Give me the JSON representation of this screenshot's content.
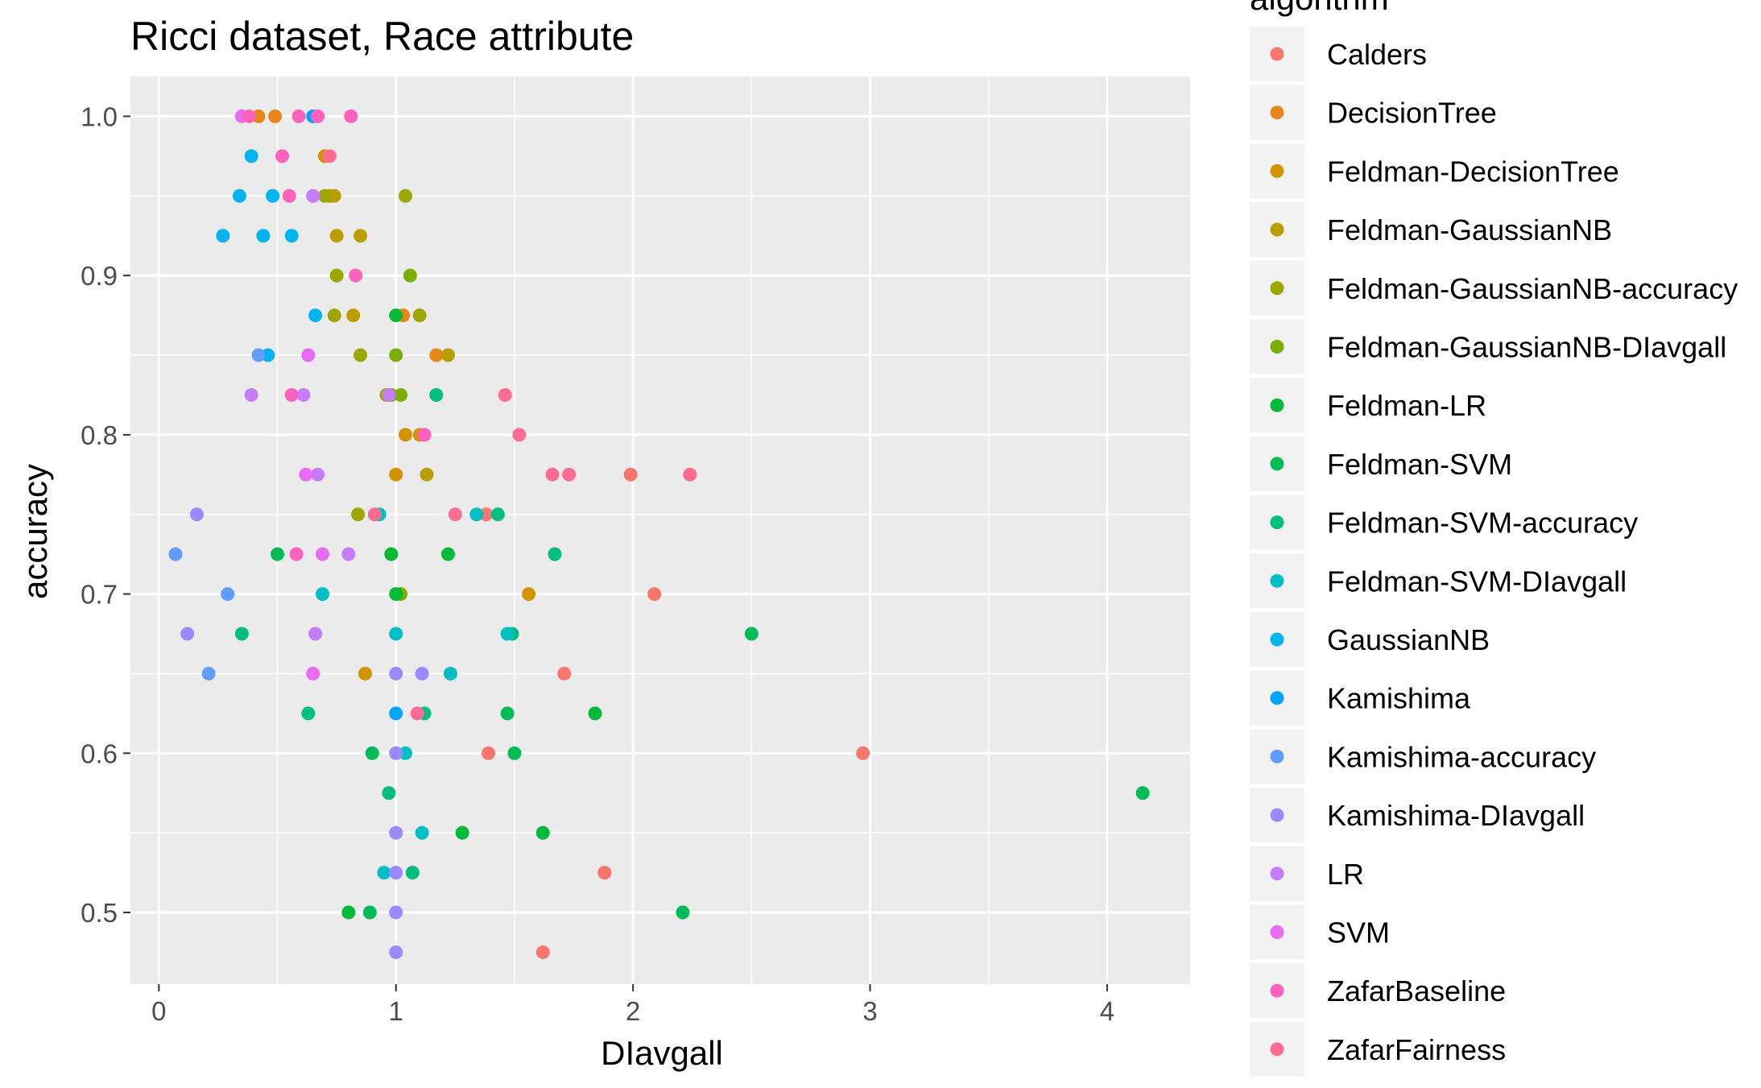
{
  "chart_data": {
    "type": "scatter",
    "title": "Ricci dataset, Race attribute",
    "xlabel": "DIavgall",
    "ylabel": "accuracy",
    "xlim": [
      -0.12,
      4.35
    ],
    "ylim": [
      0.455,
      1.025
    ],
    "x_ticks": [
      0,
      1,
      2,
      3,
      4
    ],
    "y_ticks": [
      0.5,
      0.6,
      0.7,
      0.8,
      0.9,
      1.0
    ],
    "x_tick_labels": [
      "0",
      "1",
      "2",
      "3",
      "4"
    ],
    "y_tick_labels": [
      "0.5",
      "0.6",
      "0.7",
      "0.8",
      "0.9",
      "1.0"
    ],
    "grid": true,
    "legend_title": "algorithm",
    "legend_position": "right",
    "series": [
      {
        "name": "Calders",
        "color": "#F8766D",
        "points": [
          [
            1.99,
            0.775
          ],
          [
            2.09,
            0.7
          ],
          [
            1.71,
            0.65
          ],
          [
            1.39,
            0.6
          ],
          [
            2.97,
            0.6
          ],
          [
            1.88,
            0.525
          ],
          [
            1.62,
            0.475
          ],
          [
            1.38,
            0.75
          ]
        ]
      },
      {
        "name": "DecisionTree",
        "color": "#E7861B",
        "points": [
          [
            0.49,
            1.0
          ],
          [
            0.42,
            1.0
          ],
          [
            1.03,
            0.875
          ],
          [
            1.17,
            0.85
          ]
        ]
      },
      {
        "name": "Feldman-DecisionTree",
        "color": "#D39200",
        "points": [
          [
            1.04,
            0.8
          ],
          [
            1.1,
            0.8
          ],
          [
            1.0,
            0.775
          ],
          [
            1.56,
            0.7
          ],
          [
            0.87,
            0.65
          ],
          [
            0.7,
            0.975
          ]
        ]
      },
      {
        "name": "Feldman-GaussianNB",
        "color": "#BB9D00",
        "points": [
          [
            0.72,
            0.95
          ],
          [
            0.75,
            0.925
          ],
          [
            0.85,
            0.925
          ],
          [
            0.82,
            0.875
          ],
          [
            1.22,
            0.85
          ],
          [
            1.13,
            0.775
          ],
          [
            0.74,
            0.95
          ]
        ]
      },
      {
        "name": "Feldman-GaussianNB-accuracy",
        "color": "#9DA700",
        "points": [
          [
            1.04,
            0.95
          ],
          [
            0.74,
            0.875
          ],
          [
            0.84,
            0.75
          ],
          [
            1.1,
            0.875
          ],
          [
            0.85,
            0.85
          ],
          [
            0.96,
            0.825
          ],
          [
            0.7,
            0.95
          ],
          [
            0.75,
            0.9
          ]
        ]
      },
      {
        "name": "Feldman-GaussianNB-DIavgall",
        "color": "#7CAE00",
        "points": [
          [
            1.06,
            0.9
          ],
          [
            1.0,
            0.85
          ],
          [
            1.02,
            0.825
          ],
          [
            1.02,
            0.7
          ],
          [
            0.98,
            0.825
          ]
        ]
      },
      {
        "name": "Feldman-LR",
        "color": "#00BA38",
        "points": [
          [
            1.0,
            0.875
          ],
          [
            0.98,
            0.725
          ],
          [
            1.22,
            0.725
          ],
          [
            1.0,
            0.7
          ],
          [
            1.84,
            0.625
          ],
          [
            1.28,
            0.55
          ],
          [
            1.62,
            0.55
          ],
          [
            0.8,
            0.5
          ]
        ]
      },
      {
        "name": "Feldman-SVM",
        "color": "#00BC56",
        "points": [
          [
            0.5,
            0.725
          ],
          [
            2.5,
            0.675
          ],
          [
            1.47,
            0.625
          ],
          [
            1.5,
            0.6
          ],
          [
            0.9,
            0.6
          ],
          [
            4.15,
            0.575
          ],
          [
            2.21,
            0.5
          ],
          [
            0.89,
            0.5
          ]
        ]
      },
      {
        "name": "Feldman-SVM-accuracy",
        "color": "#00BF7D",
        "points": [
          [
            1.17,
            0.825
          ],
          [
            1.43,
            0.75
          ],
          [
            1.67,
            0.725
          ],
          [
            0.35,
            0.675
          ],
          [
            1.49,
            0.675
          ],
          [
            0.63,
            0.625
          ],
          [
            1.12,
            0.625
          ],
          [
            0.97,
            0.575
          ],
          [
            1.07,
            0.525
          ]
        ]
      },
      {
        "name": "Feldman-SVM-DIavgall",
        "color": "#00BFC4",
        "points": [
          [
            0.93,
            0.75
          ],
          [
            1.34,
            0.75
          ],
          [
            0.69,
            0.7
          ],
          [
            1.0,
            0.675
          ],
          [
            1.23,
            0.65
          ],
          [
            1.04,
            0.6
          ],
          [
            1.11,
            0.55
          ],
          [
            0.95,
            0.525
          ],
          [
            1.47,
            0.675
          ]
        ]
      },
      {
        "name": "GaussianNB",
        "color": "#00B4EF",
        "points": [
          [
            0.39,
            0.975
          ],
          [
            0.34,
            0.95
          ],
          [
            0.48,
            0.95
          ],
          [
            0.27,
            0.925
          ],
          [
            0.44,
            0.925
          ],
          [
            0.56,
            0.925
          ],
          [
            0.66,
            0.875
          ],
          [
            0.46,
            0.85
          ]
        ]
      },
      {
        "name": "Kamishima",
        "color": "#00A5FF",
        "points": [
          [
            0.65,
            1.0
          ],
          [
            1.0,
            0.625
          ]
        ]
      },
      {
        "name": "Kamishima-accuracy",
        "color": "#619CFF",
        "points": [
          [
            0.42,
            0.85
          ],
          [
            0.07,
            0.725
          ],
          [
            0.29,
            0.7
          ],
          [
            0.21,
            0.65
          ]
        ]
      },
      {
        "name": "Kamishima-DIavgall",
        "color": "#9B8AFF",
        "points": [
          [
            0.16,
            0.75
          ],
          [
            0.12,
            0.675
          ],
          [
            1.0,
            0.65
          ],
          [
            1.11,
            0.65
          ],
          [
            1.0,
            0.6
          ],
          [
            1.0,
            0.55
          ],
          [
            1.0,
            0.525
          ],
          [
            1.0,
            0.5
          ],
          [
            1.0,
            0.475
          ]
        ]
      },
      {
        "name": "LR",
        "color": "#C77CFF",
        "points": [
          [
            0.65,
            0.95
          ],
          [
            0.39,
            0.825
          ],
          [
            0.61,
            0.825
          ],
          [
            0.97,
            0.825
          ],
          [
            0.67,
            0.775
          ],
          [
            0.8,
            0.725
          ],
          [
            0.66,
            0.675
          ]
        ]
      },
      {
        "name": "SVM",
        "color": "#E76BF3",
        "points": [
          [
            0.35,
            1.0
          ],
          [
            0.63,
            0.85
          ],
          [
            0.62,
            0.775
          ],
          [
            0.69,
            0.725
          ],
          [
            0.65,
            0.65
          ]
        ]
      },
      {
        "name": "ZafarBaseline",
        "color": "#FF62BC",
        "points": [
          [
            0.38,
            1.0
          ],
          [
            0.59,
            1.0
          ],
          [
            0.67,
            1.0
          ],
          [
            0.81,
            1.0
          ],
          [
            0.52,
            0.975
          ],
          [
            0.55,
            0.95
          ],
          [
            0.83,
            0.9
          ],
          [
            0.56,
            0.825
          ],
          [
            0.58,
            0.725
          ],
          [
            1.12,
            0.8
          ]
        ]
      },
      {
        "name": "ZafarFairness",
        "color": "#FF6C91",
        "points": [
          [
            0.72,
            0.975
          ],
          [
            1.46,
            0.825
          ],
          [
            1.52,
            0.8
          ],
          [
            1.66,
            0.775
          ],
          [
            1.73,
            0.775
          ],
          [
            2.24,
            0.775
          ],
          [
            1.25,
            0.75
          ],
          [
            0.91,
            0.75
          ],
          [
            1.09,
            0.625
          ]
        ]
      }
    ]
  }
}
